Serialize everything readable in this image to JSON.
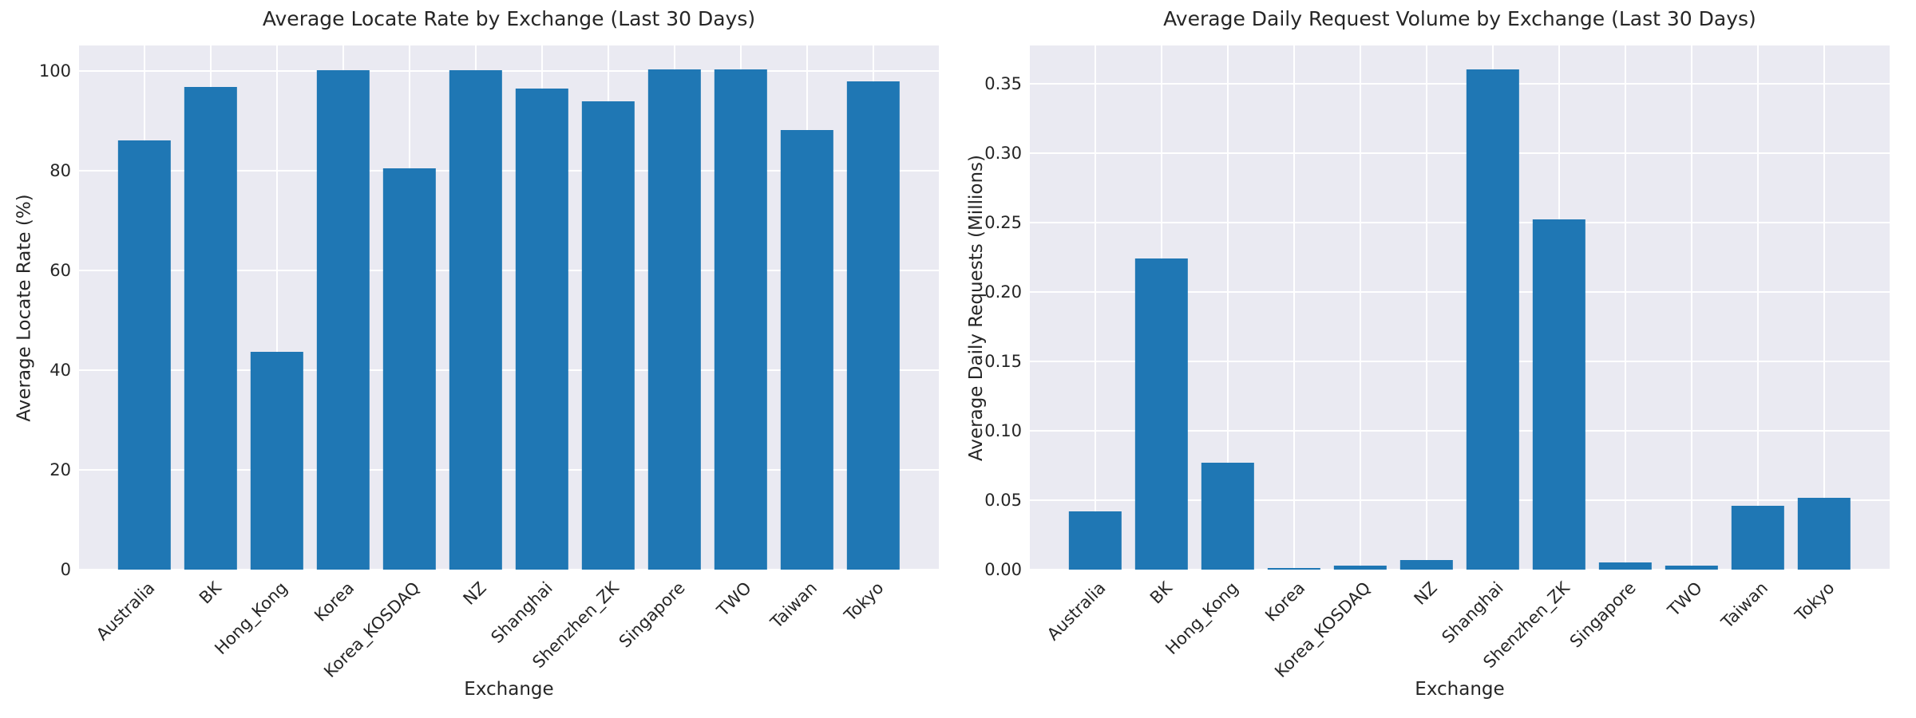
{
  "style": {
    "page_background": "#ffffff",
    "plot_background": "#eaeaf2",
    "grid_color": "#ffffff",
    "bar_color": "#1f77b4",
    "text_color": "#262626"
  },
  "chart_data": [
    {
      "type": "bar",
      "title": "Average Locate Rate by Exchange (Last 30 Days)",
      "xlabel": "Exchange",
      "ylabel": "Average Locate Rate (%)",
      "categories": [
        "Australia",
        "BK",
        "Hong_Kong",
        "Korea",
        "Korea_KOSDAQ",
        "NZ",
        "Shanghai",
        "Shenzhen_ZK",
        "Singapore",
        "TWO",
        "Taiwan",
        "Tokyo"
      ],
      "values": [
        86.2,
        96.9,
        43.7,
        100.3,
        80.6,
        100.3,
        96.5,
        94.0,
        100.4,
        100.4,
        88.3,
        98.0
      ],
      "yticks": [
        0,
        20,
        40,
        60,
        80,
        100
      ],
      "ytick_labels": [
        "0",
        "20",
        "40",
        "60",
        "80",
        "100"
      ],
      "ylim": [
        0,
        105.2
      ],
      "grid": true,
      "legend": "none",
      "x_tick_rotation": 45
    },
    {
      "type": "bar",
      "title": "Average Daily Request Volume by Exchange (Last 30 Days)",
      "xlabel": "Exchange",
      "ylabel": "Average Daily Requests (Millions)",
      "categories": [
        "Australia",
        "BK",
        "Hong_Kong",
        "Korea",
        "Korea_KOSDAQ",
        "NZ",
        "Shanghai",
        "Shenzhen_ZK",
        "Singapore",
        "TWO",
        "Taiwan",
        "Tokyo"
      ],
      "values": [
        0.042,
        0.224,
        0.077,
        0.001,
        0.003,
        0.007,
        0.36,
        0.252,
        0.005,
        0.003,
        0.046,
        0.052
      ],
      "yticks": [
        0.0,
        0.05,
        0.1,
        0.15,
        0.2,
        0.25,
        0.3,
        0.35
      ],
      "ytick_labels": [
        "0.00",
        "0.05",
        "0.10",
        "0.15",
        "0.20",
        "0.25",
        "0.30",
        "0.35"
      ],
      "ylim": [
        0,
        0.3775
      ],
      "grid": true,
      "legend": "none",
      "x_tick_rotation": 45
    }
  ]
}
